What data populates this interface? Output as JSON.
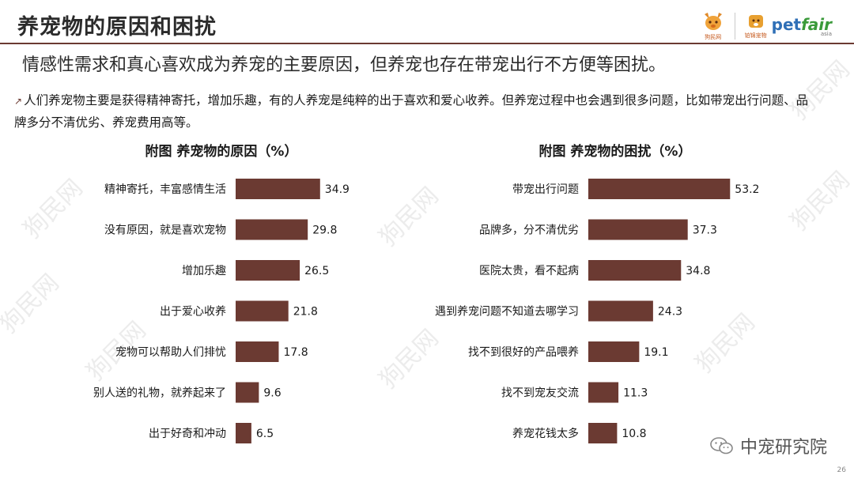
{
  "header": {
    "title": "养宠物的原因和困扰",
    "logo_left_caption": "狗民网",
    "logo_right_text_pet": "pet",
    "logo_right_text_fair": "fair",
    "logo_right_sub": "asia",
    "logo_right_caption": "铂锦宠物"
  },
  "subtitle": "情感性需求和真心喜欢成为养宠的主要原因，但养宠也存在带宠出行不方便等困扰。",
  "intro": "人们养宠物主要是获得精神寄托，增加乐趣，有的人养宠是纯粹的出于喜欢和爱心收养。但养宠过程中也会遇到很多问题，比如带宠出行问题、品牌多分不清优劣、养宠费用高等。",
  "watermark_text": "狗民网",
  "footer": {
    "brand": "中宠研究院",
    "page": "26"
  },
  "colors": {
    "bar": "#6b3a32",
    "accent": "#6b3a32"
  },
  "chart_data": [
    {
      "type": "bar",
      "orientation": "horizontal",
      "title": "附图  养宠物的原因（%）",
      "categories": [
        "精神寄托，丰富感情生活",
        "没有原因，就是喜欢宠物",
        "增加乐趣",
        "出于爱心收养",
        "宠物可以帮助人们排忧",
        "别人送的礼物，就养起来了",
        "出于好奇和冲动"
      ],
      "values": [
        34.9,
        29.8,
        26.5,
        21.8,
        17.8,
        9.6,
        6.5
      ],
      "value_labels": [
        "34.9",
        "29.8",
        "26.5",
        "21.8",
        "17.8",
        "9.6",
        "6.5"
      ],
      "xlim": [
        0,
        60
      ]
    },
    {
      "type": "bar",
      "orientation": "horizontal",
      "title": "附图  养宠物的困扰（%）",
      "categories": [
        "带宠出行问题",
        "品牌多，分不清优劣",
        "医院太贵，看不起病",
        "遇到养宠问题不知道去哪学习",
        "找不到很好的产品喂养",
        "找不到宠友交流",
        "养宠花钱太多"
      ],
      "values": [
        53.2,
        37.3,
        34.8,
        24.3,
        19.1,
        11.3,
        10.8
      ],
      "value_labels": [
        "53.2",
        "37.3",
        "34.8",
        "24.3",
        "19.1",
        "11.3",
        "10.8"
      ],
      "xlim": [
        0,
        60
      ]
    }
  ]
}
